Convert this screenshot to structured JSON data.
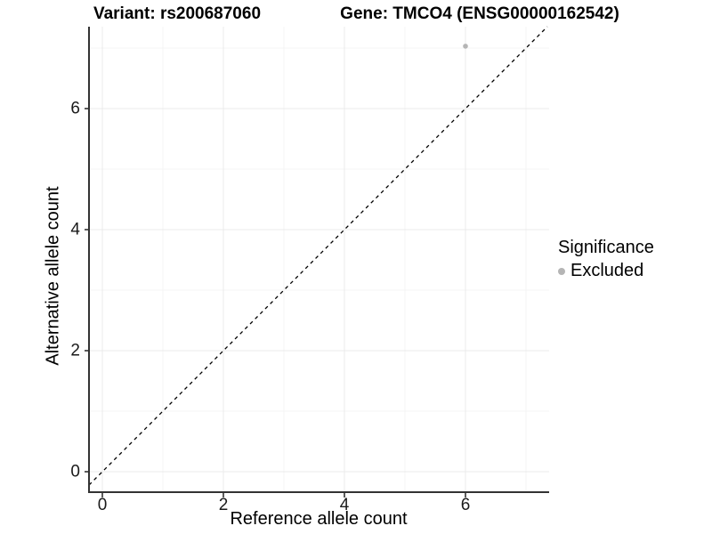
{
  "titles": {
    "variant": "Variant: rs200687060",
    "gene": "Gene: TMCO4 (ENSG00000162542)"
  },
  "x_axis": {
    "label": "Reference allele count",
    "ticks": [
      "0",
      "2",
      "4",
      "6"
    ]
  },
  "y_axis": {
    "label": "Alternative allele count",
    "ticks": [
      "0",
      "2",
      "4",
      "6"
    ]
  },
  "legend": {
    "title": "Significance",
    "items": [
      {
        "label": "Excluded",
        "color": "#b5b5b5"
      }
    ]
  },
  "colors": {
    "background": "#ffffff",
    "grid_major": "#ebebeb",
    "grid_minor": "#f4f4f4",
    "axis_line": "#333333",
    "reference_line": "#000000",
    "point": "#b5b5b5"
  },
  "chart_data": {
    "type": "scatter",
    "title": "Variant: rs200687060 — Gene: TMCO4 (ENSG00000162542)",
    "xlabel": "Reference allele count",
    "ylabel": "Alternative allele count",
    "xlim": [
      -0.35,
      7.35
    ],
    "ylim": [
      -0.35,
      7.35
    ],
    "x_ticks": [
      0,
      2,
      4,
      6
    ],
    "y_ticks": [
      0,
      2,
      4,
      6
    ],
    "grid": "on",
    "legend_position": "right",
    "legend_title": "Significance",
    "reference_line": {
      "style": "dashed",
      "equation": "y = x",
      "slope": 1,
      "intercept": 0
    },
    "series": [
      {
        "name": "Excluded",
        "color": "#b5b5b5",
        "points": [
          {
            "x": 6,
            "y": 7
          }
        ]
      }
    ]
  }
}
